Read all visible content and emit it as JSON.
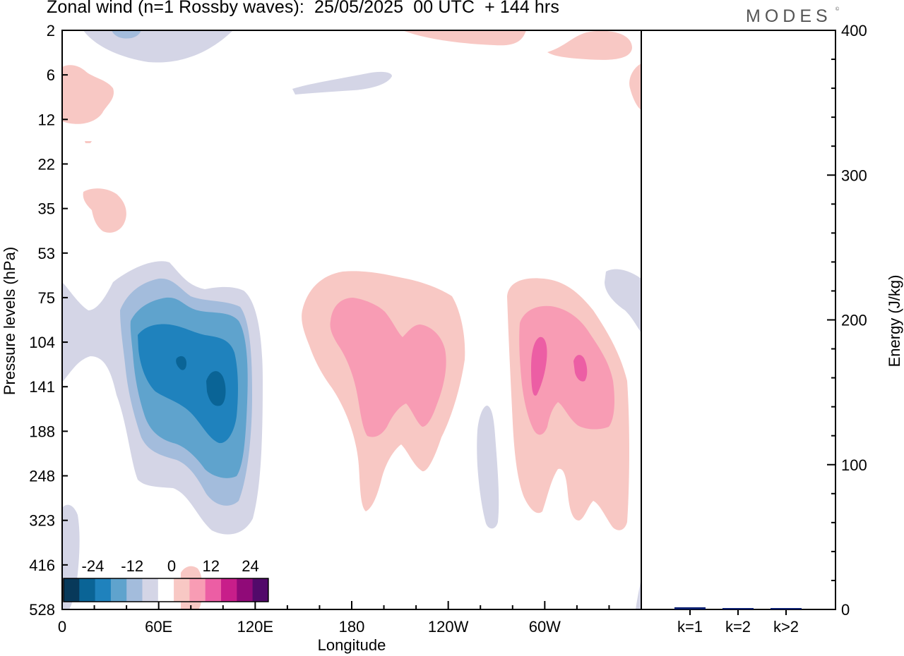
{
  "header": {
    "title": "Zonal wind (n=1 Rossby waves):  25/05/2025  00 UTC  + 144 hrs",
    "brand": "MODES",
    "brand_mark": "©"
  },
  "colors": {
    "levels": [
      "#08395a",
      "#0a6496",
      "#1f82bd",
      "#5fa3cd",
      "#a3bcdc",
      "#d4d5e6",
      "#ffffff",
      "#f8c8c4",
      "#f89cb4",
      "#ec5ea4",
      "#c81e8a",
      "#900a78",
      "#520a6a"
    ],
    "bar": "#0a1e6e"
  },
  "chart_data": [
    {
      "type": "heatmap",
      "title": "Zonal wind (n=1 Rossby waves):  25/05/2025  00 UTC  + 144 hrs",
      "xlabel": "Longitude",
      "ylabel": "Pressure levels (hPa)",
      "x_ticks": [
        "0",
        "60E",
        "120E",
        "180",
        "120W",
        "60W"
      ],
      "y_ticks": [
        "2",
        "6",
        "12",
        "22",
        "35",
        "53",
        "75",
        "104",
        "141",
        "188",
        "248",
        "323",
        "416",
        "528"
      ],
      "colorbar": {
        "tick_labels": [
          "-24",
          "-12",
          "0",
          "12",
          "24"
        ],
        "tick_values": [
          -24,
          -12,
          0,
          12,
          24
        ],
        "bounds": [
          -32,
          -28,
          -24,
          -20,
          -16,
          -12,
          -8,
          -4,
          4,
          8,
          12,
          16,
          20,
          24,
          28
        ]
      },
      "features": [
        {
          "sign": "negative",
          "lon": 95,
          "hpa": 130,
          "min": -22
        },
        {
          "sign": "positive",
          "lon": 200,
          "hpa": 110,
          "max": 12
        },
        {
          "sign": "positive",
          "lon": 285,
          "hpa": 120,
          "max": 16
        }
      ]
    },
    {
      "type": "bar",
      "ylabel": "Energy (J/kg)",
      "categories": [
        "k=1",
        "k=2",
        "k>2"
      ],
      "values": [
        1.5,
        0.8,
        0.5
      ],
      "ylim": [
        0,
        400
      ],
      "y_ticks": [
        "0",
        "100",
        "200",
        "300",
        "400"
      ]
    }
  ]
}
